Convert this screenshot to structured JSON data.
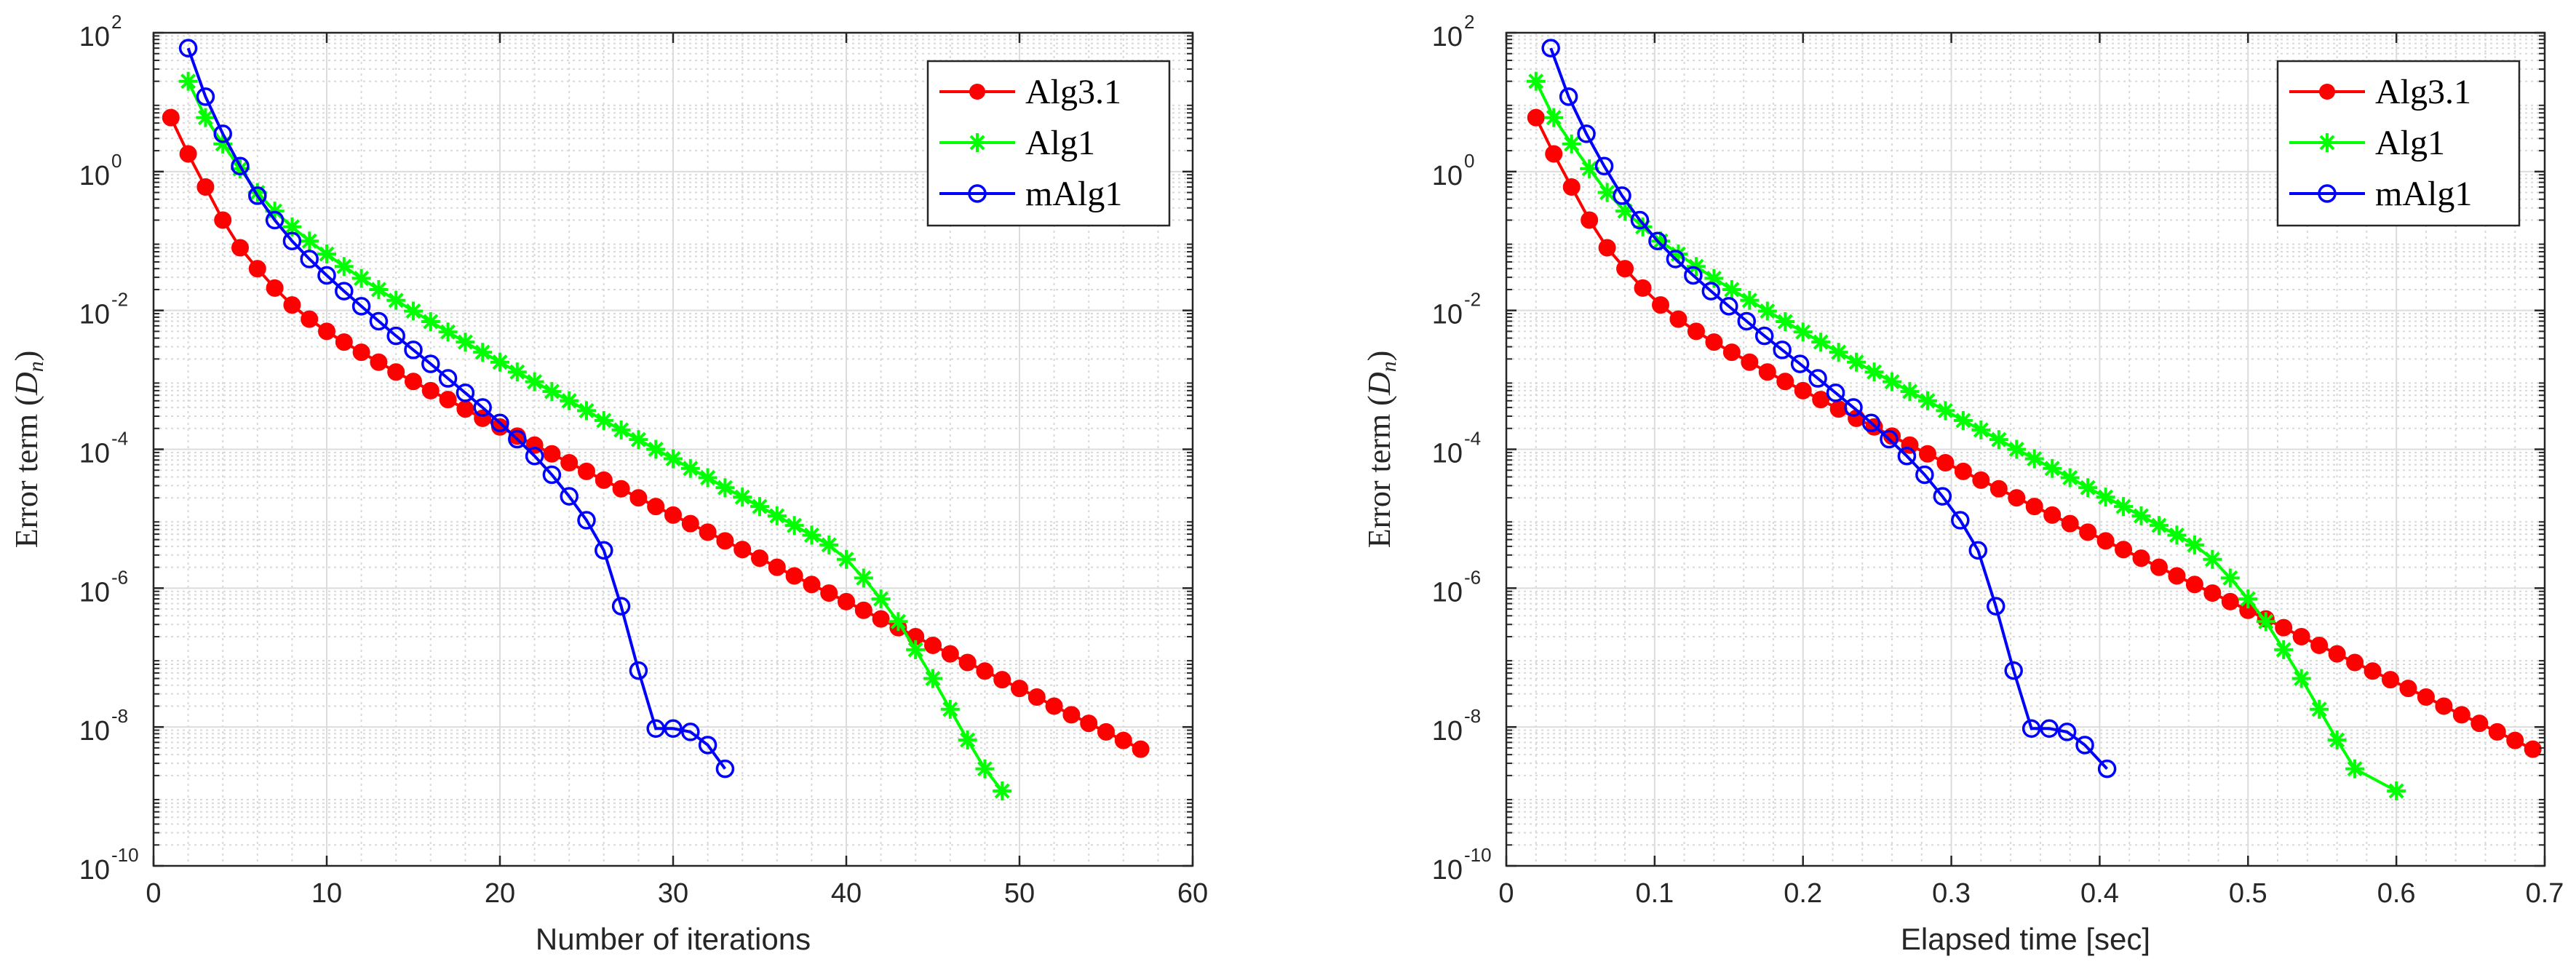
{
  "chart_data": [
    {
      "type": "line",
      "yscale": "log",
      "xlabel": "Number of iterations",
      "ylabel": "Error term (",
      "ylabel_symbol": "D",
      "ylabel_subscript": "n",
      "ylabel_close": ")",
      "xlim": [
        0,
        60
      ],
      "xticks": [
        0,
        10,
        20,
        30,
        40,
        50,
        60
      ],
      "xtick_labels": [
        "0",
        "10",
        "20",
        "30",
        "40",
        "50",
        "60"
      ],
      "ylim_exp": [
        -10,
        2
      ],
      "ytick_exps": [
        -10,
        -8,
        -6,
        -4,
        -2,
        0,
        2
      ],
      "ytick_base": "10",
      "ytick_exp_labels": [
        "-10",
        "-8",
        "-6",
        "-4",
        "-2",
        "0",
        "2"
      ],
      "grid": true,
      "legend_position": "top-right",
      "series": [
        {
          "name": "Alg3.1",
          "color": "#ff0000",
          "marker": "filled-circle",
          "x": [
            1,
            2,
            3,
            4,
            5,
            6,
            7,
            8,
            9,
            10,
            11,
            12,
            13,
            14,
            15,
            16,
            17,
            18,
            19,
            20,
            21,
            22,
            23,
            24,
            25,
            26,
            27,
            28,
            29,
            30,
            31,
            32,
            33,
            34,
            35,
            36,
            37,
            38,
            39,
            40,
            41,
            42,
            43,
            44,
            45,
            46,
            47,
            48,
            49,
            50,
            51,
            52,
            53,
            54,
            55,
            56,
            57
          ],
          "y": [
            6,
            1.8,
            0.6,
            0.2,
            0.08,
            0.04,
            0.021,
            0.012,
            0.0075,
            0.005,
            0.0035,
            0.0025,
            0.0018,
            0.0013,
            0.00095,
            0.0007,
            0.00052,
            0.00038,
            0.00028,
            0.00021,
            0.000155,
            0.000115,
            8.6e-05,
            6.4e-05,
            4.8e-05,
            3.6e-05,
            2.7e-05,
            2e-05,
            1.5e-05,
            1.13e-05,
            8.5e-06,
            6.4e-06,
            4.8e-06,
            3.6e-06,
            2.7e-06,
            2e-06,
            1.5e-06,
            1.13e-06,
            8.5e-07,
            6.4e-07,
            4.8e-07,
            3.6e-07,
            2.7e-07,
            2e-07,
            1.5e-07,
            1.13e-07,
            8.5e-08,
            6.4e-08,
            4.8e-08,
            3.6e-08,
            2.7e-08,
            2e-08,
            1.5e-08,
            1.13e-08,
            8.5e-09,
            6.4e-09,
            4.8e-09
          ]
        },
        {
          "name": "Alg1",
          "color": "#00ff00",
          "marker": "asterisk",
          "x": [
            2,
            3,
            4,
            5,
            6,
            7,
            8,
            9,
            10,
            11,
            12,
            13,
            14,
            15,
            16,
            17,
            18,
            19,
            20,
            21,
            22,
            23,
            24,
            25,
            26,
            27,
            28,
            29,
            30,
            31,
            32,
            33,
            34,
            35,
            36,
            37,
            38,
            39,
            40,
            41,
            42,
            43,
            44,
            45,
            46,
            47,
            48,
            49
          ],
          "y": [
            20,
            6,
            2.5,
            1.1,
            0.5,
            0.27,
            0.16,
            0.1,
            0.065,
            0.043,
            0.029,
            0.02,
            0.014,
            0.0098,
            0.0069,
            0.0049,
            0.0035,
            0.0025,
            0.0018,
            0.0013,
            0.00094,
            0.00068,
            0.0005,
            0.00036,
            0.00026,
            0.00019,
            0.000138,
            0.0001,
            7.3e-05,
            5.3e-05,
            3.9e-05,
            2.8e-05,
            2.05e-05,
            1.5e-05,
            1.1e-05,
            8e-06,
            5.8e-06,
            4.2e-06,
            2.6e-06,
            1.4e-06,
            7e-07,
            3.3e-07,
            1.3e-07,
            5e-08,
            1.8e-08,
            6.5e-09,
            2.5e-09,
            1.2e-09
          ]
        },
        {
          "name": "mAlg1",
          "color": "#0000ff",
          "marker": "open-circle",
          "x": [
            2,
            3,
            4,
            5,
            6,
            7,
            8,
            9,
            10,
            11,
            12,
            13,
            14,
            15,
            16,
            17,
            18,
            19,
            20,
            21,
            22,
            23,
            24,
            25,
            26,
            27,
            28,
            29,
            30,
            31,
            32,
            33
          ],
          "y": [
            60,
            12,
            3.5,
            1.2,
            0.45,
            0.2,
            0.1,
            0.055,
            0.032,
            0.019,
            0.0115,
            0.007,
            0.0043,
            0.0027,
            0.0017,
            0.00105,
            0.00065,
            0.0004,
            0.00024,
            0.00014,
            8e-05,
            4.3e-05,
            2.1e-05,
            9.5e-06,
            3.5e-06,
            5.5e-07,
            6.5e-08,
            9.5e-09,
            9.5e-09,
            8.5e-09,
            5.5e-09,
            2.5e-09
          ]
        }
      ]
    },
    {
      "type": "line",
      "yscale": "log",
      "xlabel": "Elapsed time [sec]",
      "ylabel": "Error term (",
      "ylabel_symbol": "D",
      "ylabel_subscript": "n",
      "ylabel_close": ")",
      "xlim": [
        0,
        0.7
      ],
      "xticks": [
        0,
        0.1,
        0.2,
        0.3,
        0.4,
        0.5,
        0.6,
        0.7
      ],
      "xtick_labels": [
        "0",
        "0.1",
        "0.2",
        "0.3",
        "0.4",
        "0.5",
        "0.6",
        "0.7"
      ],
      "ylim_exp": [
        -10,
        2
      ],
      "ytick_exps": [
        -10,
        -8,
        -6,
        -4,
        -2,
        0,
        2
      ],
      "ytick_base": "10",
      "ytick_exp_labels": [
        "-10",
        "-8",
        "-6",
        "-4",
        "-2",
        "0",
        "2"
      ],
      "grid": true,
      "legend_position": "top-right",
      "series": [
        {
          "name": "Alg3.1",
          "color": "#ff0000",
          "marker": "filled-circle",
          "x": [
            0.02,
            0.032,
            0.044,
            0.056,
            0.068,
            0.08,
            0.092,
            0.104,
            0.116,
            0.128,
            0.14,
            0.152,
            0.164,
            0.176,
            0.188,
            0.2,
            0.212,
            0.224,
            0.236,
            0.248,
            0.26,
            0.272,
            0.284,
            0.296,
            0.308,
            0.32,
            0.332,
            0.344,
            0.356,
            0.368,
            0.38,
            0.392,
            0.404,
            0.416,
            0.428,
            0.44,
            0.452,
            0.464,
            0.476,
            0.488,
            0.5,
            0.512,
            0.524,
            0.536,
            0.548,
            0.56,
            0.572,
            0.584,
            0.596,
            0.608,
            0.62,
            0.632,
            0.644,
            0.656,
            0.668,
            0.68,
            0.692
          ],
          "y": [
            6,
            1.8,
            0.6,
            0.2,
            0.08,
            0.04,
            0.021,
            0.012,
            0.0075,
            0.005,
            0.0035,
            0.0025,
            0.0018,
            0.0013,
            0.00095,
            0.0007,
            0.00052,
            0.00038,
            0.00028,
            0.00021,
            0.000155,
            0.000115,
            8.6e-05,
            6.4e-05,
            4.8e-05,
            3.6e-05,
            2.7e-05,
            2e-05,
            1.5e-05,
            1.13e-05,
            8.5e-06,
            6.4e-06,
            4.8e-06,
            3.6e-06,
            2.7e-06,
            2e-06,
            1.5e-06,
            1.13e-06,
            8.5e-07,
            6.4e-07,
            4.8e-07,
            3.6e-07,
            2.7e-07,
            2e-07,
            1.5e-07,
            1.13e-07,
            8.5e-08,
            6.4e-08,
            4.8e-08,
            3.6e-08,
            2.7e-08,
            2e-08,
            1.5e-08,
            1.13e-08,
            8.5e-09,
            6.4e-09,
            4.8e-09
          ]
        },
        {
          "name": "Alg1",
          "color": "#00ff00",
          "marker": "asterisk",
          "x": [
            0.02,
            0.032,
            0.044,
            0.056,
            0.068,
            0.08,
            0.092,
            0.104,
            0.116,
            0.128,
            0.14,
            0.152,
            0.164,
            0.176,
            0.188,
            0.2,
            0.212,
            0.224,
            0.236,
            0.248,
            0.26,
            0.272,
            0.284,
            0.296,
            0.308,
            0.32,
            0.332,
            0.344,
            0.356,
            0.368,
            0.38,
            0.392,
            0.404,
            0.416,
            0.428,
            0.44,
            0.452,
            0.464,
            0.476,
            0.488,
            0.5,
            0.512,
            0.524,
            0.536,
            0.548,
            0.56,
            0.572,
            0.6
          ],
          "y": [
            20,
            6,
            2.5,
            1.1,
            0.5,
            0.27,
            0.16,
            0.1,
            0.065,
            0.043,
            0.029,
            0.02,
            0.014,
            0.0098,
            0.0069,
            0.0049,
            0.0035,
            0.0025,
            0.0018,
            0.0013,
            0.00094,
            0.00068,
            0.0005,
            0.00036,
            0.00026,
            0.00019,
            0.000138,
            0.0001,
            7.3e-05,
            5.3e-05,
            3.9e-05,
            2.8e-05,
            2.05e-05,
            1.5e-05,
            1.1e-05,
            8e-06,
            5.8e-06,
            4.2e-06,
            2.6e-06,
            1.4e-06,
            7e-07,
            3.3e-07,
            1.3e-07,
            5e-08,
            1.8e-08,
            6.5e-09,
            2.5e-09,
            1.2e-09
          ]
        },
        {
          "name": "mAlg1",
          "color": "#0000ff",
          "marker": "open-circle",
          "x": [
            0.03,
            0.042,
            0.054,
            0.066,
            0.078,
            0.09,
            0.102,
            0.114,
            0.126,
            0.138,
            0.15,
            0.162,
            0.174,
            0.186,
            0.198,
            0.21,
            0.222,
            0.234,
            0.246,
            0.258,
            0.27,
            0.282,
            0.294,
            0.306,
            0.318,
            0.33,
            0.342,
            0.354,
            0.366,
            0.378,
            0.39,
            0.405
          ],
          "y": [
            60,
            12,
            3.5,
            1.2,
            0.45,
            0.2,
            0.1,
            0.055,
            0.032,
            0.019,
            0.0115,
            0.007,
            0.0043,
            0.0027,
            0.0017,
            0.00105,
            0.00065,
            0.0004,
            0.00024,
            0.00014,
            8e-05,
            4.3e-05,
            2.1e-05,
            9.5e-06,
            3.5e-06,
            5.5e-07,
            6.5e-08,
            9.5e-09,
            9.5e-09,
            8.5e-09,
            5.5e-09,
            2.5e-09
          ]
        }
      ]
    }
  ]
}
